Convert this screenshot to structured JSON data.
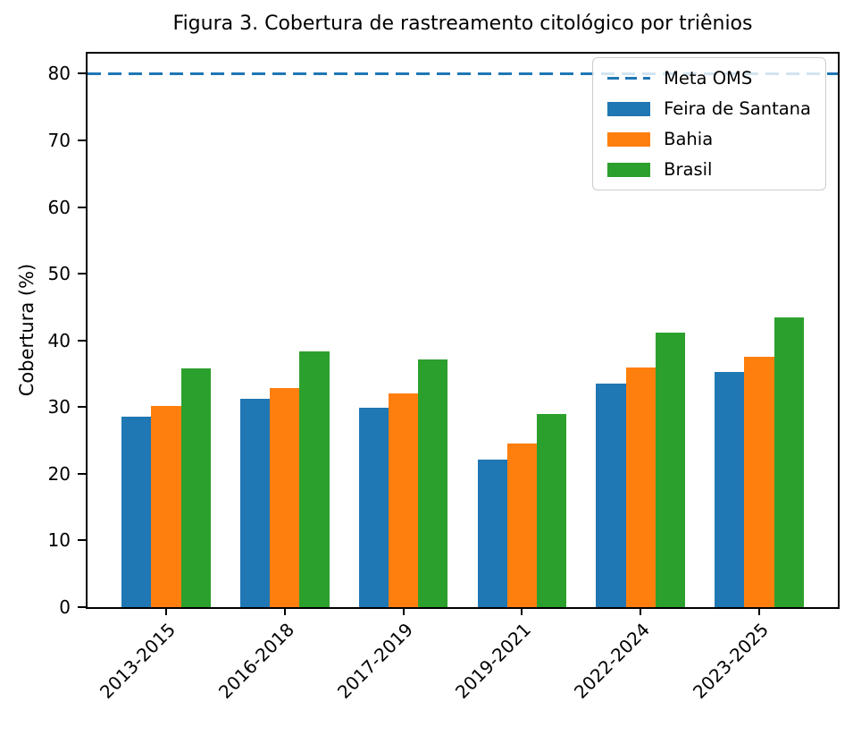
{
  "chart_data": {
    "type": "bar",
    "title": "Figura 3. Cobertura de rastreamento citológico por triênios",
    "xlabel": "",
    "ylabel": "Cobertura (%)",
    "categories": [
      "2013-2015",
      "2016-2018",
      "2017-2019",
      "2019-2021",
      "2022-2024",
      "2023-2025"
    ],
    "series": [
      {
        "name": "Feira de Santana",
        "color": "#1f77b4",
        "values": [
          28.5,
          31.2,
          29.9,
          22.1,
          33.5,
          35.2
        ]
      },
      {
        "name": "Bahia",
        "color": "#ff7f0e",
        "values": [
          30.2,
          32.8,
          32.0,
          24.5,
          35.9,
          37.5
        ]
      },
      {
        "name": "Brasil",
        "color": "#2ca02c",
        "values": [
          35.8,
          38.4,
          37.2,
          28.9,
          41.2,
          43.5
        ]
      }
    ],
    "reference_line": {
      "label": "Meta OMS",
      "value": 80,
      "color": "#1f77b4",
      "style": "dashed"
    },
    "yticks": [
      0,
      10,
      20,
      30,
      40,
      50,
      60,
      70,
      80
    ],
    "ylim": [
      0,
      83
    ],
    "xlim": [
      -0.6625,
      5.6625
    ],
    "bar_width_units": 0.25,
    "legend_position": "upper right",
    "grid": false,
    "axis_color": "#000000",
    "background_color": "#ffffff"
  }
}
